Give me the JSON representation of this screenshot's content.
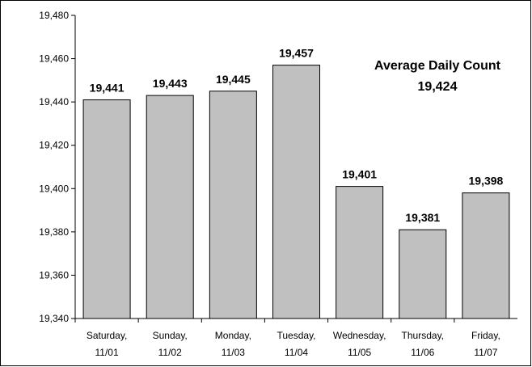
{
  "chart_data": {
    "type": "bar",
    "categories": [
      [
        "Saturday,",
        "11/01"
      ],
      [
        "Sunday,",
        "11/02"
      ],
      [
        "Monday,",
        "11/03"
      ],
      [
        "Tuesday,",
        "11/04"
      ],
      [
        "Wednesday,",
        "11/05"
      ],
      [
        "Thursday,",
        "11/06"
      ],
      [
        "Friday,",
        "11/07"
      ]
    ],
    "values": [
      19441,
      19443,
      19445,
      19457,
      19401,
      19381,
      19398
    ],
    "data_labels": [
      "19,441",
      "19,443",
      "19,445",
      "19,457",
      "19,401",
      "19,381",
      "19,398"
    ],
    "ylim": [
      19340,
      19480
    ],
    "yticks": [
      19340,
      19360,
      19380,
      19400,
      19420,
      19440,
      19460,
      19480
    ],
    "ytick_labels": [
      "19,340",
      "19,360",
      "19,380",
      "19,400",
      "19,420",
      "19,440",
      "19,460",
      "19,480"
    ],
    "grid": false,
    "bar_color": "#c0c0c0",
    "bar_edge_color": "#000000",
    "title": "",
    "xlabel": "",
    "ylabel": "",
    "annotation": {
      "line1": "Average Daily Count",
      "line2": "19,424"
    }
  }
}
